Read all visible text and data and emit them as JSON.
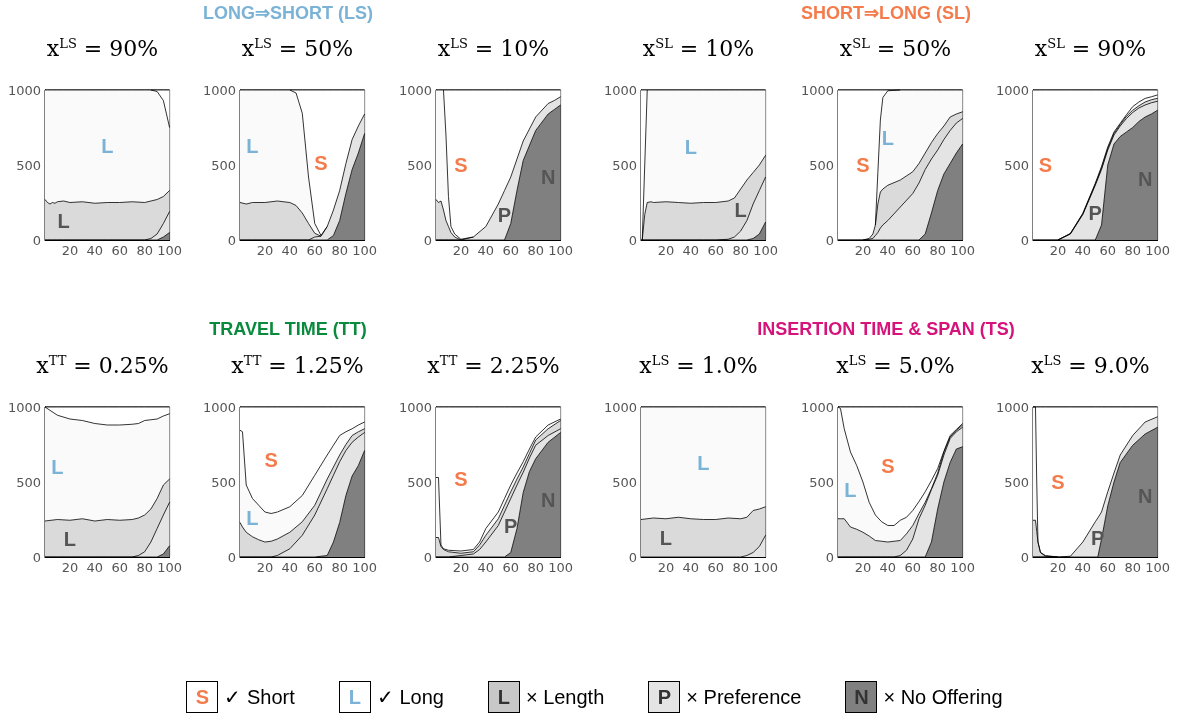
{
  "chart_data": [
    {
      "type": "area",
      "title": "x$^{LS}$ = 90%",
      "stacked": true,
      "marker": "none",
      "xlim": [
        0,
        100
      ],
      "ylim": [
        0,
        1000
      ],
      "xticks": [
        20,
        40,
        60,
        80,
        100
      ],
      "yticks": [
        0,
        500,
        1000
      ],
      "x": [
        0,
        2,
        4,
        6,
        8,
        10,
        15,
        20,
        30,
        40,
        50,
        60,
        70,
        80,
        85,
        90,
        95,
        100
      ],
      "series": [
        {
          "color": "#808080",
          "values": [
            0,
            0,
            0,
            0,
            0,
            0,
            0,
            0,
            0,
            0,
            0,
            0,
            0,
            0,
            0,
            0,
            20,
            50
          ]
        },
        {
          "color": "#e4e4e4",
          "values": [
            0,
            0,
            0,
            0,
            0,
            0,
            0,
            0,
            0,
            0,
            0,
            0,
            0,
            0,
            10,
            40,
            90,
            140
          ]
        },
        {
          "name": "L",
          "color": "#dadada",
          "values": [
            270,
            250,
            240,
            250,
            245,
            255,
            260,
            250,
            255,
            245,
            250,
            250,
            255,
            250,
            250,
            230,
            180,
            140
          ]
        },
        {
          "name": "L",
          "color": "#fafafa",
          "values": [
            730,
            750,
            760,
            750,
            755,
            745,
            740,
            750,
            745,
            755,
            750,
            750,
            745,
            750,
            740,
            720,
            640,
            420
          ]
        },
        {
          "color": "#ffffff",
          "values": [
            null,
            null,
            null,
            null,
            null,
            null,
            null,
            null,
            null,
            null,
            null,
            null,
            null,
            null,
            0,
            10,
            70,
            250
          ]
        }
      ]
    },
    {
      "type": "area",
      "title": "x$^{LS}$ = 50%",
      "stacked": true,
      "marker": "none",
      "xlim": [
        0,
        100
      ],
      "ylim": [
        0,
        1000
      ],
      "xticks": [
        20,
        40,
        60,
        80,
        100
      ],
      "yticks": [
        0,
        500,
        1000
      ],
      "x": [
        0,
        5,
        10,
        20,
        30,
        40,
        45,
        50,
        55,
        60,
        65,
        70,
        75,
        80,
        85,
        90,
        95,
        100
      ],
      "series": [
        {
          "color": "#808080",
          "values": [
            0,
            0,
            0,
            0,
            0,
            0,
            0,
            0,
            0,
            0,
            0,
            0,
            30,
            130,
            310,
            470,
            580,
            710
          ]
        },
        {
          "color": "#e4e4e4",
          "values": [
            0,
            0,
            0,
            0,
            0,
            0,
            0,
            0,
            0,
            20,
            25,
            90,
            170,
            200,
            200,
            200,
            180,
            130
          ]
        },
        {
          "color": "#dadada",
          "values": [
            250,
            240,
            250,
            250,
            260,
            250,
            230,
            180,
            110,
            25,
            0,
            null,
            null,
            null,
            null,
            null,
            null,
            null
          ]
        },
        {
          "name": "L",
          "color": "#fafafa",
          "values": [
            750,
            760,
            750,
            750,
            740,
            750,
            750,
            665,
            310,
            65,
            5,
            0,
            null,
            null,
            null,
            null,
            null,
            null
          ]
        },
        {
          "name": "S",
          "color": "#ffffff",
          "values": [
            null,
            null,
            null,
            null,
            null,
            0,
            20,
            155,
            580,
            890,
            970,
            910,
            800,
            670,
            490,
            330,
            240,
            160
          ]
        }
      ],
      "annotations": [
        "LONG⇒SHORT (LS)"
      ]
    },
    {
      "type": "area",
      "title": "x$^{LS}$ = 10%",
      "stacked": true,
      "marker": "none",
      "xlim": [
        0,
        100
      ],
      "ylim": [
        0,
        1000
      ],
      "xticks": [
        20,
        40,
        60,
        80,
        100
      ],
      "yticks": [
        0,
        500,
        1000
      ],
      "x": [
        0,
        2,
        4,
        6,
        8,
        10,
        12,
        15,
        20,
        30,
        40,
        50,
        55,
        60,
        65,
        70,
        80,
        90,
        95,
        100
      ],
      "series": [
        {
          "name": "N",
          "color": "#808080",
          "values": [
            0,
            0,
            0,
            0,
            0,
            0,
            0,
            0,
            0,
            0,
            0,
            0,
            0,
            110,
            330,
            530,
            730,
            840,
            870,
            900
          ]
        },
        {
          "name": "P",
          "color": "#e4e4e4",
          "values": [
            0,
            0,
            0,
            0,
            0,
            0,
            0,
            0,
            0,
            20,
            90,
            240,
            330,
            310,
            210,
            130,
            90,
            70,
            60,
            55
          ]
        },
        {
          "color": "#dadada",
          "values": [
            270,
            250,
            260,
            200,
            130,
            90,
            50,
            20,
            0,
            null,
            null,
            null,
            null,
            null,
            null,
            null,
            null,
            null,
            null,
            null
          ]
        },
        {
          "color": "#fafafa",
          "values": [
            730,
            750,
            740,
            800,
            570,
            200,
            40,
            20,
            5,
            0,
            null,
            null,
            null,
            null,
            null,
            null,
            null,
            null,
            null,
            null
          ]
        },
        {
          "name": "S",
          "color": "#ffffff",
          "values": [
            null,
            null,
            null,
            0,
            300,
            710,
            910,
            960,
            995,
            980,
            910,
            760,
            670,
            580,
            460,
            340,
            180,
            90,
            70,
            45
          ]
        }
      ]
    },
    {
      "type": "area",
      "title": "x$^{SL}$ = 10%",
      "stacked": true,
      "marker": "none",
      "xlim": [
        0,
        100
      ],
      "ylim": [
        0,
        1000
      ],
      "xticks": [
        20,
        40,
        60,
        80,
        100
      ],
      "yticks": [
        0,
        500,
        1000
      ],
      "x": [
        0,
        1,
        3,
        5,
        8,
        10,
        20,
        30,
        40,
        50,
        60,
        70,
        75,
        80,
        85,
        90,
        95,
        100
      ],
      "series": [
        {
          "color": "#808080",
          "values": [
            0,
            0,
            0,
            0,
            0,
            0,
            0,
            0,
            0,
            0,
            0,
            0,
            0,
            0,
            0,
            10,
            40,
            120
          ]
        },
        {
          "color": "#e4e4e4",
          "values": [
            0,
            0,
            0,
            0,
            0,
            0,
            0,
            0,
            0,
            0,
            0,
            5,
            20,
            60,
            130,
            230,
            290,
            300
          ]
        },
        {
          "name": "L",
          "color": "#dadada",
          "values": [
            null,
            0,
            170,
            250,
            255,
            250,
            255,
            250,
            245,
            250,
            250,
            255,
            260,
            280,
            270,
            210,
            170,
            145
          ]
        },
        {
          "name": "L",
          "color": "#fafafa",
          "values": [
            null,
            0,
            330,
            750,
            745,
            750,
            745,
            750,
            755,
            750,
            750,
            740,
            720,
            660,
            600,
            550,
            500,
            435
          ]
        },
        {
          "color": "#ffffff",
          "values": [
            1000,
            1000,
            500,
            0,
            null,
            null,
            null,
            null,
            null,
            null,
            null,
            null,
            null,
            null,
            null,
            null,
            null,
            null
          ]
        }
      ]
    },
    {
      "type": "area",
      "title": "x$^{SL}$ = 50%",
      "stacked": true,
      "marker": "none",
      "xlim": [
        0,
        100
      ],
      "ylim": [
        0,
        1000
      ],
      "xticks": [
        20,
        40,
        60,
        80,
        100
      ],
      "yticks": [
        0,
        500,
        1000
      ],
      "x": [
        0,
        20,
        25,
        28,
        30,
        32,
        34,
        36,
        40,
        50,
        60,
        65,
        70,
        75,
        80,
        85,
        90,
        95,
        100
      ],
      "series": [
        {
          "color": "#808080",
          "values": [
            0,
            0,
            0,
            0,
            0,
            0,
            0,
            0,
            0,
            0,
            0,
            0,
            40,
            180,
            330,
            440,
            510,
            580,
            640
          ]
        },
        {
          "color": "#e4e4e4",
          "values": [
            0,
            0,
            5,
            10,
            30,
            50,
            80,
            100,
            130,
            220,
            310,
            380,
            430,
            360,
            270,
            230,
            220,
            200,
            170
          ]
        },
        {
          "color": "#dadada",
          "values": [
            null,
            0,
            5,
            30,
            70,
            190,
            240,
            240,
            235,
            180,
            145,
            130,
            110,
            110,
            110,
            90,
            90,
            60,
            45
          ]
        },
        {
          "name": "L",
          "color": "#fafafa",
          "values": [
            null,
            null,
            null,
            null,
            0,
            210,
            480,
            610,
            630,
            600,
            545,
            490,
            420,
            350,
            290,
            240,
            180,
            160,
            145
          ]
        },
        {
          "name": "S",
          "color": "#ffffff",
          "values": [
            1000,
            1000,
            990,
            960,
            900,
            550,
            200,
            50,
            5,
            0,
            null,
            null,
            null,
            null,
            null,
            null,
            null,
            null,
            null
          ]
        }
      ],
      "annotations": [
        "SHORT⇒LONG (SL)"
      ]
    },
    {
      "type": "area",
      "title": "x$^{SL}$ = 90%",
      "stacked": true,
      "marker": "none",
      "xlim": [
        0,
        100
      ],
      "ylim": [
        0,
        1000
      ],
      "xticks": [
        20,
        40,
        60,
        80,
        100
      ],
      "yticks": [
        0,
        500,
        1000
      ],
      "x": [
        0,
        10,
        20,
        30,
        40,
        50,
        55,
        60,
        65,
        70,
        75,
        80,
        85,
        90,
        95,
        100
      ],
      "series": [
        {
          "name": "N",
          "color": "#808080",
          "values": [
            0,
            0,
            0,
            0,
            0,
            0,
            100,
            500,
            640,
            690,
            720,
            750,
            790,
            820,
            840,
            865
          ]
        },
        {
          "name": "P",
          "color": "#e4e4e4",
          "values": [
            0,
            0,
            0,
            40,
            170,
            365,
            370,
            100,
            60,
            70,
            90,
            100,
            90,
            80,
            75,
            60
          ]
        },
        {
          "color": "#dadada",
          "values": [
            null,
            null,
            0,
            2,
            5,
            7,
            10,
            10,
            10,
            10,
            15,
            15,
            15,
            20,
            20,
            20
          ]
        },
        {
          "color": "#fafafa",
          "values": [
            null,
            null,
            0,
            2,
            3,
            6,
            10,
            10,
            10,
            8,
            10,
            24,
            25,
            24,
            20,
            22
          ]
        },
        {
          "name": "S",
          "color": "#ffffff",
          "values": [
            1000,
            1000,
            1000,
            956,
            822,
            622,
            510,
            380,
            280,
            222,
            165,
            111,
            80,
            56,
            45,
            33
          ]
        }
      ]
    },
    {
      "type": "area",
      "title": "x$^{TT}$ = 0.25%",
      "stacked": true,
      "marker": "none",
      "xlim": [
        0,
        100
      ],
      "ylim": [
        0,
        1000
      ],
      "xticks": [
        20,
        40,
        60,
        80,
        100
      ],
      "yticks": [
        0,
        500,
        1000
      ],
      "x": [
        0,
        10,
        20,
        30,
        40,
        50,
        60,
        70,
        75,
        80,
        85,
        90,
        95,
        100
      ],
      "series": [
        {
          "color": "#808080",
          "values": [
            0,
            0,
            0,
            0,
            0,
            0,
            0,
            0,
            0,
            0,
            0,
            0,
            20,
            75
          ]
        },
        {
          "color": "#e4e4e4",
          "values": [
            0,
            0,
            0,
            0,
            0,
            0,
            0,
            0,
            10,
            35,
            100,
            190,
            260,
            290
          ]
        },
        {
          "name": "L",
          "color": "#dadada",
          "values": [
            240,
            250,
            245,
            255,
            240,
            250,
            245,
            250,
            250,
            245,
            220,
            200,
            200,
            155
          ]
        },
        {
          "name": "L",
          "color": "#fafafa",
          "values": [
            760,
            695,
            675,
            655,
            650,
            630,
            635,
            635,
            630,
            630,
            595,
            530,
            460,
            435
          ]
        },
        {
          "color": "#ffffff",
          "values": [
            0,
            55,
            80,
            90,
            110,
            120,
            120,
            115,
            110,
            90,
            85,
            80,
            60,
            45
          ]
        }
      ]
    },
    {
      "type": "area",
      "title": "x$^{TT}$ = 1.25%",
      "stacked": true,
      "marker": "none",
      "xlim": [
        0,
        100
      ],
      "ylim": [
        0,
        1000
      ],
      "xticks": [
        20,
        40,
        60,
        80,
        100
      ],
      "yticks": [
        0,
        500,
        1000
      ],
      "x": [
        0,
        2,
        5,
        10,
        15,
        20,
        25,
        30,
        40,
        50,
        60,
        70,
        75,
        80,
        85,
        90,
        95,
        100
      ],
      "series": [
        {
          "color": "#808080",
          "values": [
            0,
            0,
            0,
            0,
            0,
            0,
            0,
            0,
            0,
            0,
            0,
            10,
            100,
            230,
            410,
            540,
            610,
            710
          ]
        },
        {
          "color": "#e4e4e4",
          "values": [
            0,
            0,
            0,
            0,
            0,
            0,
            0,
            10,
            55,
            145,
            280,
            445,
            445,
            405,
            300,
            225,
            190,
            120
          ]
        },
        {
          "color": "#dadada",
          "values": [
            230,
            200,
            165,
            135,
            115,
            100,
            105,
            110,
            110,
            90,
            65,
            65,
            55,
            45,
            40,
            45,
            35,
            25
          ]
        },
        {
          "name": "L",
          "color": "#fafafa",
          "values": [
            615,
            635,
            315,
            255,
            230,
            200,
            185,
            180,
            170,
            175,
            200,
            160,
            145,
            130,
            85,
            45,
            45,
            45
          ]
        },
        {
          "name": "S",
          "color": "#ffffff",
          "values": [
            155,
            165,
            520,
            610,
            655,
            700,
            710,
            700,
            665,
            590,
            455,
            320,
            255,
            190,
            165,
            145,
            120,
            100
          ]
        }
      ],
      "annotations": [
        "TRAVEL TIME (TT)"
      ]
    },
    {
      "type": "area",
      "title": "x$^{TT}$ = 2.25%",
      "stacked": true,
      "marker": "none",
      "xlim": [
        0,
        100
      ],
      "ylim": [
        0,
        1000
      ],
      "xticks": [
        20,
        40,
        60,
        80,
        100
      ],
      "yticks": [
        0,
        500,
        1000
      ],
      "x": [
        0,
        2,
        4,
        6,
        10,
        20,
        30,
        35,
        40,
        50,
        55,
        60,
        65,
        70,
        75,
        80,
        90,
        100
      ],
      "series": [
        {
          "name": "N",
          "color": "#808080",
          "values": [
            0,
            0,
            0,
            0,
            0,
            0,
            0,
            0,
            0,
            0,
            0,
            30,
            190,
            430,
            570,
            655,
            765,
            830
          ]
        },
        {
          "name": "P",
          "color": "#e4e4e4",
          "values": [
            0,
            0,
            0,
            0,
            0,
            10,
            20,
            50,
            100,
            210,
            300,
            360,
            290,
            135,
            90,
            90,
            45,
            25
          ]
        },
        {
          "color": "#dadada",
          "values": [
            130,
            130,
            70,
            50,
            35,
            15,
            15,
            30,
            45,
            45,
            45,
            45,
            40,
            35,
            30,
            35,
            45,
            55
          ]
        },
        {
          "color": "#fafafa",
          "values": [
            400,
            400,
            10,
            5,
            10,
            15,
            15,
            20,
            45,
            45,
            45,
            45,
            40,
            35,
            30,
            20,
            25,
            10
          ]
        },
        {
          "name": "S",
          "color": "#ffffff",
          "values": [
            470,
            470,
            920,
            945,
            955,
            960,
            950,
            900,
            810,
            700,
            610,
            520,
            440,
            365,
            280,
            200,
            120,
            80
          ]
        }
      ]
    },
    {
      "type": "area",
      "title": "x$^{LS}$ = 1.0%",
      "stacked": true,
      "marker": "none",
      "xlim": [
        0,
        100
      ],
      "ylim": [
        0,
        1000
      ],
      "xticks": [
        20,
        40,
        60,
        80,
        100
      ],
      "yticks": [
        0,
        500,
        1000
      ],
      "x": [
        0,
        10,
        20,
        30,
        40,
        50,
        60,
        70,
        80,
        85,
        90,
        95,
        100
      ],
      "series": [
        {
          "color": "#e4e4e4",
          "values": [
            0,
            0,
            0,
            0,
            0,
            0,
            0,
            0,
            0,
            10,
            30,
            70,
            145
          ]
        },
        {
          "name": "L",
          "color": "#dadada",
          "values": [
            250,
            260,
            255,
            265,
            255,
            250,
            250,
            260,
            255,
            255,
            280,
            250,
            190
          ]
        },
        {
          "name": "L",
          "color": "#fafafa",
          "values": [
            750,
            740,
            745,
            735,
            745,
            750,
            750,
            740,
            745,
            735,
            690,
            680,
            665
          ]
        }
      ]
    },
    {
      "type": "area",
      "title": "x$^{LS}$ = 5.0%",
      "stacked": true,
      "marker": "none",
      "xlim": [
        0,
        100
      ],
      "ylim": [
        0,
        1000
      ],
      "xticks": [
        20,
        40,
        60,
        80,
        100
      ],
      "yticks": [
        0,
        500,
        1000
      ],
      "x": [
        0,
        2,
        5,
        10,
        15,
        20,
        25,
        30,
        35,
        40,
        45,
        50,
        55,
        60,
        65,
        70,
        75,
        80,
        85,
        90,
        95,
        100
      ],
      "series": [
        {
          "color": "#808080",
          "values": [
            0,
            0,
            0,
            0,
            0,
            0,
            0,
            0,
            0,
            0,
            0,
            0,
            0,
            0,
            0,
            0,
            100,
            320,
            500,
            630,
            720,
            735
          ]
        },
        {
          "color": "#e4e4e4",
          "values": [
            0,
            0,
            0,
            0,
            0,
            0,
            0,
            0,
            0,
            0,
            0,
            10,
            45,
            120,
            255,
            345,
            350,
            225,
            180,
            160,
            115,
            130
          ]
        },
        {
          "color": "#dadada",
          "values": [
            255,
            255,
            255,
            200,
            185,
            165,
            140,
            110,
            105,
            100,
            105,
            100,
            110,
            90,
            35,
            20,
            5,
            15,
            20,
            10,
            10,
            15
          ]
        },
        {
          "name": "L",
          "color": "#fafafa",
          "values": [
            745,
            735,
            600,
            500,
            425,
            335,
            225,
            170,
            130,
            110,
            105,
            135,
            110,
            100,
            80,
            70,
            55,
            30,
            5,
            10,
            5,
            10
          ]
        },
        {
          "name": "S",
          "color": "#ffffff",
          "values": [
            0,
            10,
            145,
            300,
            390,
            500,
            635,
            720,
            765,
            790,
            790,
            755,
            735,
            690,
            630,
            565,
            490,
            410,
            295,
            190,
            150,
            110
          ]
        }
      ],
      "annotations": [
        "INSERTION TIME & SPAN (TS)"
      ]
    },
    {
      "type": "area",
      "title": "x$^{LS}$ = 9.0%",
      "stacked": true,
      "marker": "none",
      "xlim": [
        0,
        100
      ],
      "ylim": [
        0,
        1000
      ],
      "xticks": [
        20,
        40,
        60,
        80,
        100
      ],
      "yticks": [
        0,
        500,
        1000
      ],
      "x": [
        0,
        2,
        3,
        4,
        6,
        10,
        20,
        30,
        40,
        50,
        52,
        55,
        60,
        65,
        70,
        80,
        90,
        100
      ],
      "series": [
        {
          "name": "N",
          "color": "#808080",
          "values": [
            0,
            0,
            0,
            0,
            0,
            0,
            0,
            0,
            0,
            0,
            0,
            120,
            340,
            500,
            630,
            745,
            820,
            865
          ]
        },
        {
          "name": "P",
          "color": "#e4e4e4",
          "values": [
            0,
            0,
            0,
            0,
            0,
            0,
            0,
            5,
            100,
            235,
            260,
            180,
            95,
            60,
            50,
            65,
            80,
            70
          ]
        },
        {
          "color": "#dadada",
          "values": [
            245,
            245,
            170,
            100,
            30,
            5,
            0,
            null,
            null,
            null,
            null,
            null,
            null,
            null,
            null,
            null,
            null,
            null
          ]
        },
        {
          "color": "#fafafa",
          "values": [
            755,
            755,
            330,
            0,
            0,
            5,
            0,
            null,
            null,
            null,
            null,
            null,
            null,
            null,
            null,
            null,
            null,
            null
          ]
        },
        {
          "name": "S",
          "color": "#ffffff",
          "values": [
            0,
            0,
            500,
            900,
            970,
            990,
            1000,
            995,
            900,
            765,
            740,
            700,
            565,
            440,
            320,
            190,
            100,
            65
          ]
        }
      ]
    },
    {
      "type": "other",
      "annotations": [
        "S",
        "✓ Short",
        "L",
        "✓ Long",
        "L",
        "× Length",
        "P",
        "× Preference",
        "N",
        "× No Offering"
      ],
      "colors": [
        "#ffffff",
        "#ffffff",
        "#c8c8c8",
        "#e4e4e4",
        "#808080"
      ]
    }
  ]
}
